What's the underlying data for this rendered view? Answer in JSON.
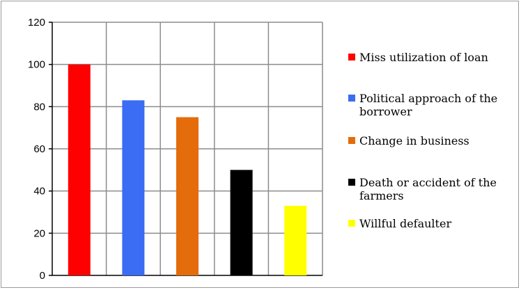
{
  "chart_data": {
    "type": "bar",
    "categories": [
      "Miss utilization of loan",
      "Political approach of the borrower",
      "Change in business",
      "Death or accident of the farmers",
      "Willful defaulter"
    ],
    "values": [
      100,
      83,
      75,
      50,
      33
    ],
    "colors": [
      "#ff0000",
      "#3a6cf4",
      "#e46c0a",
      "#000000",
      "#ffff00"
    ],
    "ylim": [
      0,
      120
    ],
    "yticks": [
      0,
      20,
      40,
      60,
      80,
      100,
      120
    ],
    "grid": "vertical and horizontal lines at tick positions",
    "legend_position": "right"
  },
  "legend": [
    {
      "lines": [
        "Miss utilization of loan"
      ],
      "color": "#ff0000"
    },
    {
      "lines": [
        "Political approach of the",
        "borrower"
      ],
      "color": "#3a6cf4"
    },
    {
      "lines": [
        "Change in business"
      ],
      "color": "#e46c0a"
    },
    {
      "lines": [
        "Death or accident of the",
        "farmers"
      ],
      "color": "#000000"
    },
    {
      "lines": [
        "Willful defaulter"
      ],
      "color": "#ffff00"
    }
  ]
}
